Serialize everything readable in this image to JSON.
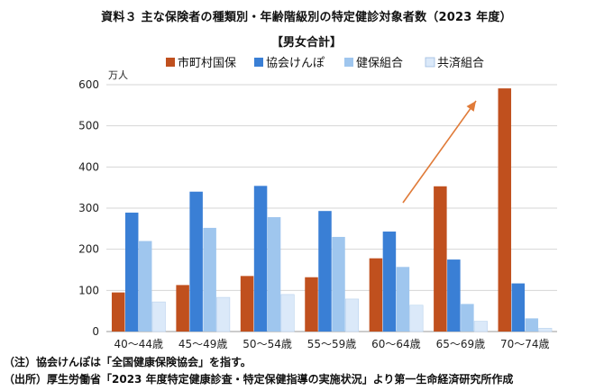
{
  "header": {
    "title": "資料３ 主な保険者の種類別・年齢階級別の特定健診対象者数（2023 年度）",
    "subtitle": "【男女合計】"
  },
  "footer": {
    "note": "（注）協会けんぽは「全国健康保険協会」を指す。",
    "source": "（出所）厚生労働省「2023 年度特定健康診査・特定保健指導の実施状況」より第一生命経済研究所作成"
  },
  "chart_data": {
    "type": "bar",
    "title": "",
    "unit_label": "万人",
    "categories": [
      "40～44歳",
      "45～49歳",
      "50～54歳",
      "55～59歳",
      "60～64歳",
      "65～69歳",
      "70～74歳"
    ],
    "series": [
      {
        "name": "市町村国保",
        "color": "#c0501e",
        "values": [
          95,
          113,
          135,
          132,
          178,
          353,
          591
        ]
      },
      {
        "name": "協会けんぽ",
        "color": "#3a7fd5",
        "values": [
          289,
          340,
          354,
          293,
          243,
          175,
          117
        ]
      },
      {
        "name": "健保組合",
        "color": "#9fc6ee",
        "values": [
          220,
          252,
          278,
          230,
          157,
          67,
          32
        ]
      },
      {
        "name": "共済組合",
        "color": "#dbe9f9",
        "values": [
          72,
          83,
          90,
          79,
          64,
          25,
          8
        ]
      }
    ],
    "ylim": [
      0,
      600
    ],
    "yticks": [
      0,
      100,
      200,
      300,
      400,
      500,
      600
    ],
    "grid": true,
    "legend": "top-right",
    "annotation": "rising arrow toward 70～74歳 bar",
    "arrow_color": "#e07b39"
  }
}
